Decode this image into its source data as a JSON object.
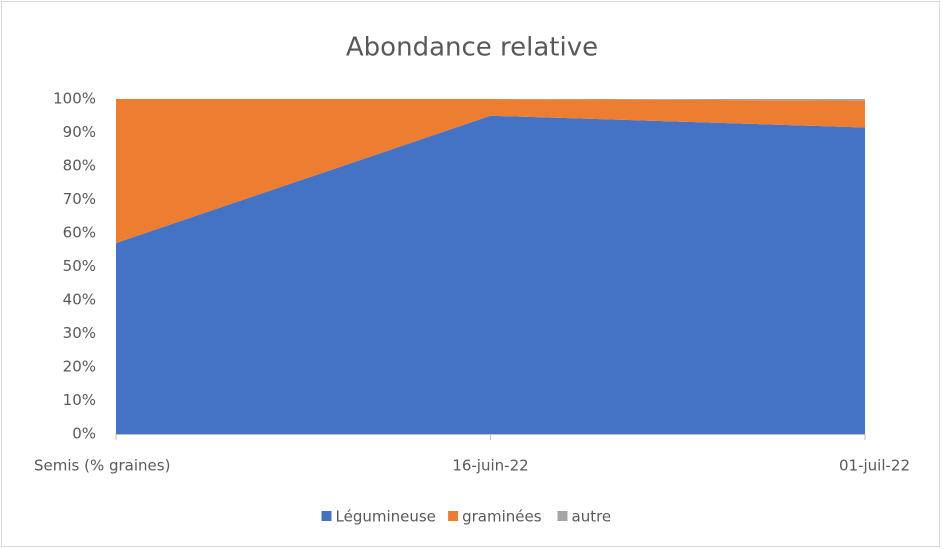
{
  "chart_data": {
    "type": "stacked_area",
    "title": "Abondance relative",
    "categories": [
      "Semis (% graines)",
      "16-juin-22",
      "01-juil-22"
    ],
    "series": [
      {
        "name": "Légumineuse",
        "color": "#4472c4",
        "values": [
          57,
          95,
          91.5
        ]
      },
      {
        "name": "graminées",
        "color": "#ed7d31",
        "values": [
          43,
          5,
          8
        ]
      },
      {
        "name": "autre",
        "color": "#a5a5a5",
        "values": [
          0,
          0,
          0.5
        ]
      }
    ],
    "ylim": [
      0,
      100
    ],
    "yticks": [
      {
        "value": 0,
        "label": "0%"
      },
      {
        "value": 10,
        "label": "10%"
      },
      {
        "value": 20,
        "label": "20%"
      },
      {
        "value": 30,
        "label": "30%"
      },
      {
        "value": 40,
        "label": "40%"
      },
      {
        "value": 50,
        "label": "50%"
      },
      {
        "value": 60,
        "label": "60%"
      },
      {
        "value": 70,
        "label": "70%"
      },
      {
        "value": 80,
        "label": "80%"
      },
      {
        "value": 90,
        "label": "90%"
      },
      {
        "value": 100,
        "label": "100%"
      }
    ],
    "legend": "bottom"
  }
}
